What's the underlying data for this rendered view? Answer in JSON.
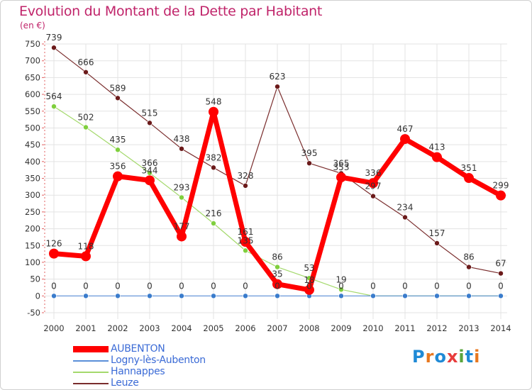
{
  "page": {
    "title": "Evolution du Montant de la Dette par Habitant",
    "unit": "(en €)"
  },
  "logo": {
    "text": "Proxiti",
    "letters": [
      "P",
      "r",
      "o",
      "x",
      "i",
      "t",
      "i"
    ],
    "colors": [
      "#1f8ad6",
      "#e8781f",
      "#1f8ad6",
      "#e83c3c",
      "#5aa53d",
      "#1f8ad6",
      "#e8781f"
    ]
  },
  "chart_data": {
    "type": "line",
    "title": "Evolution du Montant de la Dette par Habitant",
    "ylabel": "(en €)",
    "xlabel": "",
    "ylim": [
      -50,
      750
    ],
    "ytick_step": 50,
    "categories": [
      "2000",
      "2001",
      "2002",
      "2003",
      "2004",
      "2005",
      "2006",
      "2007",
      "2008",
      "2009",
      "2010",
      "2011",
      "2012",
      "2013",
      "2014"
    ],
    "series": [
      {
        "name": "AUBENTON",
        "color": "#ff0000",
        "marker": "#ff0000",
        "width": 7,
        "dot": 7,
        "values": [
          126,
          118,
          356,
          344,
          177,
          548,
          161,
          35,
          18,
          353,
          336,
          467,
          413,
          351,
          299
        ]
      },
      {
        "name": "Logny-lès-Aubenton",
        "color": "#5b8fd8",
        "marker": "#3a7ccc",
        "width": 1.2,
        "dot": 3.5,
        "values": [
          0,
          0,
          0,
          0,
          0,
          0,
          0,
          0,
          0,
          0,
          0,
          0,
          0,
          0,
          0
        ]
      },
      {
        "name": "Hannappes",
        "color": "#a4d96c",
        "marker": "#7fcf3d",
        "width": 1.2,
        "dot": 3.5,
        "values": [
          564,
          502,
          435,
          366,
          293,
          216,
          135,
          86,
          53,
          19,
          0,
          0,
          0,
          0,
          0
        ]
      },
      {
        "name": "Leuze",
        "color": "#7a2d2d",
        "marker": "#6b1a1a",
        "width": 1.2,
        "dot": 3.5,
        "values": [
          739,
          666,
          589,
          515,
          438,
          382,
          328,
          623,
          395,
          365,
          297,
          234,
          157,
          86,
          67
        ]
      }
    ],
    "data_labels": [
      [
        "126",
        "118",
        "356",
        "344",
        "177",
        "548",
        "161",
        "35",
        "18",
        "353",
        "336",
        "467",
        "413",
        "351",
        "299"
      ],
      [
        "0",
        "0",
        "0",
        "0",
        "0",
        "0",
        "0",
        "0",
        "0",
        "0",
        "0",
        "0",
        "0",
        "0",
        "0"
      ],
      [
        "564",
        "502",
        "435",
        "366",
        "293",
        "216",
        "135",
        "86",
        "53",
        "19",
        "",
        "",
        "",
        "",
        ""
      ],
      [
        "739",
        "666",
        "589",
        "515",
        "438",
        "382",
        "328",
        "623",
        "395",
        "365",
        "297",
        "234",
        "157",
        "86",
        "67"
      ]
    ],
    "legend": [
      "AUBENTON",
      "Logny-lès-Aubenton",
      "Hannappes",
      "Leuze"
    ],
    "legend_position": "bottom-left",
    "grid": true
  }
}
